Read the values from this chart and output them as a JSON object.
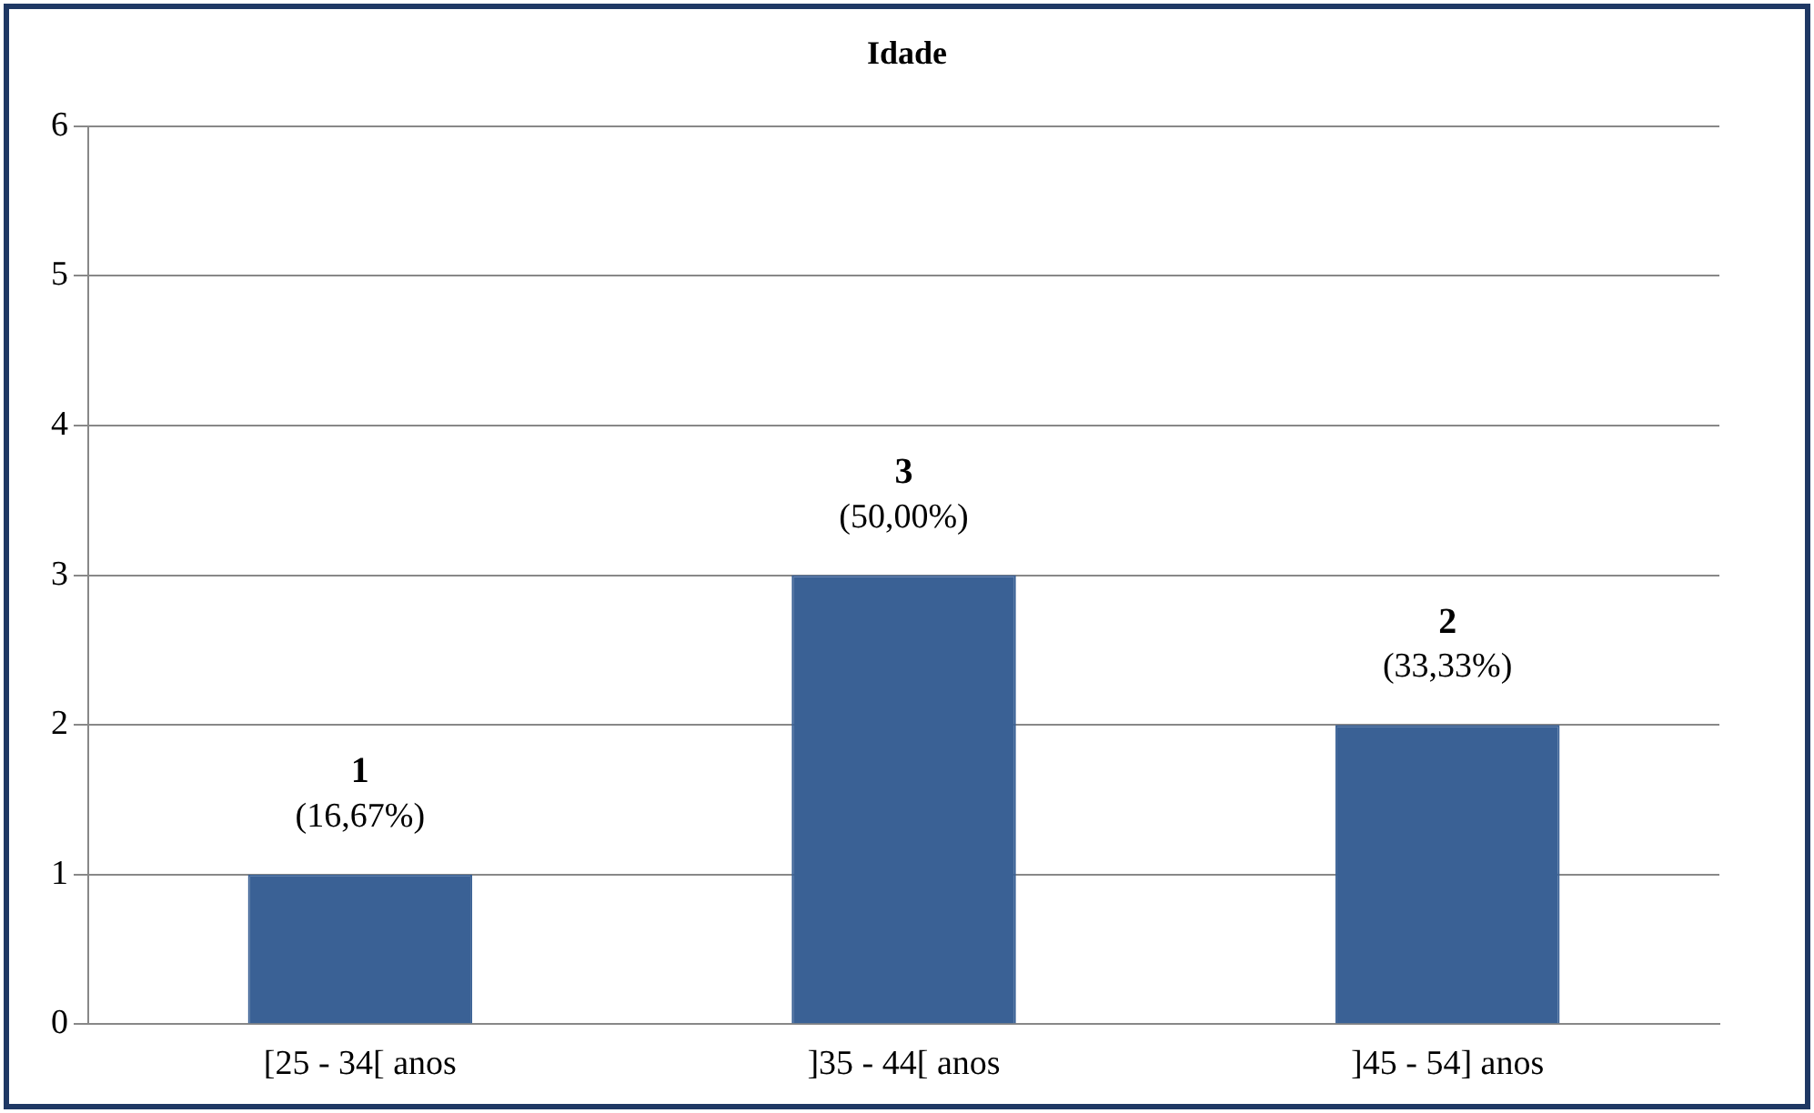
{
  "chart_data": {
    "type": "bar",
    "title": "Idade",
    "categories": [
      "[25 - 34[ anos",
      "]35 - 44[ anos",
      "]45 - 54] anos"
    ],
    "values": [
      1,
      3,
      2
    ],
    "color": "#3a6195",
    "ylim": [
      0,
      6
    ],
    "yticks": [
      0,
      1,
      2,
      3,
      4,
      5,
      6
    ],
    "grid": "y",
    "legend": false,
    "data_labels": true,
    "annotations": [
      {
        "text": "(16,67%)",
        "x": "[25 - 34[ anos",
        "y": 1
      },
      {
        "text": "(50,00%)",
        "x": "]35 - 44[ anos",
        "y": 3
      },
      {
        "text": "(33,33%)",
        "x": "]45 - 54] anos",
        "y": 2
      }
    ]
  }
}
